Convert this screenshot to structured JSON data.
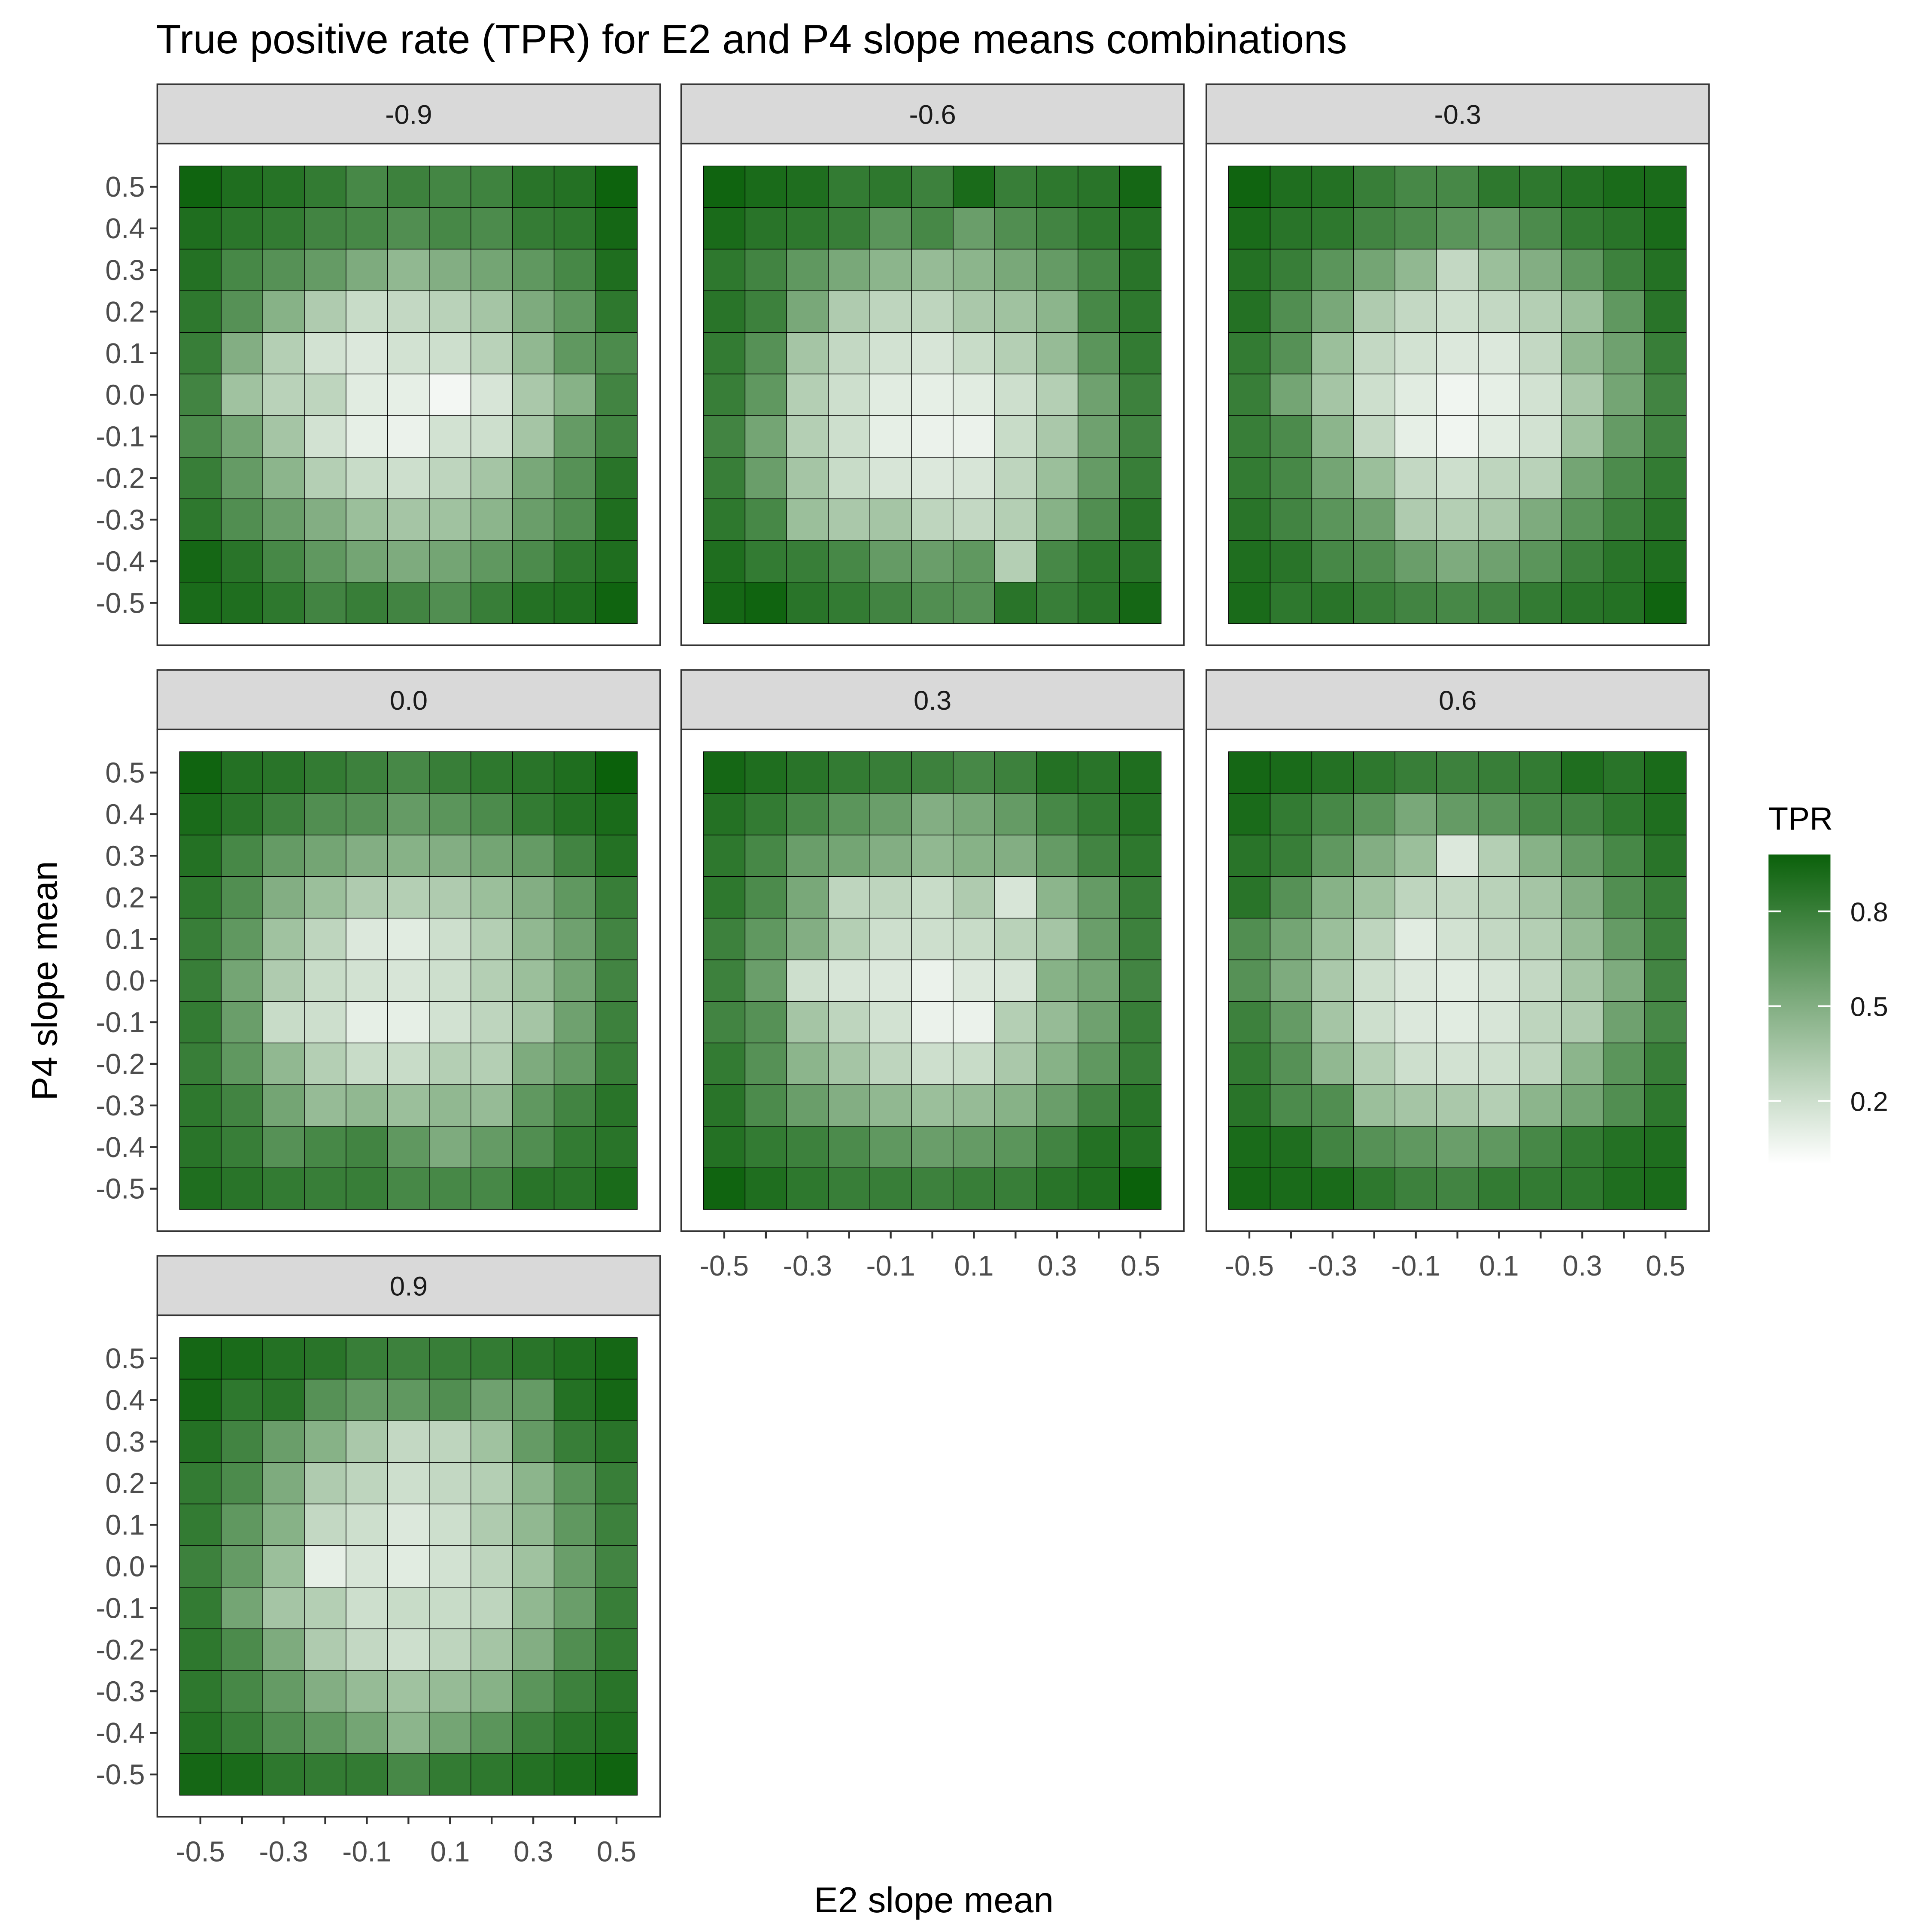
{
  "chart_data": {
    "type": "heatmap",
    "title": "True positive rate (TPR) for E2 and P4 slope means combinations",
    "xlabel": "E2 slope mean",
    "ylabel": "P4 slope mean",
    "x": [
      -0.5,
      -0.4,
      -0.3,
      -0.2,
      -0.1,
      0.0,
      0.1,
      0.2,
      0.3,
      0.4,
      0.5
    ],
    "y": [
      -0.5,
      -0.4,
      -0.3,
      -0.2,
      -0.1,
      0.0,
      0.1,
      0.2,
      0.3,
      0.4,
      0.5
    ],
    "x_tick_labels": [
      "-0.5",
      "-0.3",
      "-0.1",
      "0.1",
      "0.3",
      "0.5"
    ],
    "y_tick_labels": [
      "-0.5",
      "-0.4",
      "-0.3",
      "-0.2",
      "-0.1",
      "0.0",
      "0.1",
      "0.2",
      "0.3",
      "0.4",
      "0.5"
    ],
    "legend": {
      "title": "TPR",
      "ticks": [
        0.2,
        0.5,
        0.8
      ],
      "tick_labels": [
        "0.2",
        "0.5",
        "0.8"
      ],
      "range": [
        0.0,
        0.98
      ],
      "color_low": "#ffffff",
      "color_high": "#0b610b",
      "placement": "right"
    },
    "facets": [
      {
        "label": "-0.9",
        "z": [
          [
            0.96,
            0.9,
            0.87,
            0.82,
            0.74,
            0.78,
            0.75,
            0.77,
            0.86,
            0.88,
            0.97
          ],
          [
            0.9,
            0.85,
            0.82,
            0.76,
            0.74,
            0.7,
            0.74,
            0.72,
            0.81,
            0.84,
            0.94
          ],
          [
            0.88,
            0.74,
            0.68,
            0.62,
            0.52,
            0.44,
            0.5,
            0.56,
            0.64,
            0.74,
            0.9
          ],
          [
            0.84,
            0.68,
            0.48,
            0.32,
            0.22,
            0.24,
            0.28,
            0.36,
            0.52,
            0.64,
            0.84
          ],
          [
            0.8,
            0.5,
            0.3,
            0.18,
            0.14,
            0.18,
            0.2,
            0.28,
            0.44,
            0.64,
            0.72
          ],
          [
            0.76,
            0.38,
            0.28,
            0.26,
            0.12,
            0.1,
            0.05,
            0.16,
            0.34,
            0.48,
            0.76
          ],
          [
            0.72,
            0.56,
            0.36,
            0.18,
            0.1,
            0.08,
            0.18,
            0.2,
            0.36,
            0.62,
            0.76
          ],
          [
            0.8,
            0.62,
            0.46,
            0.3,
            0.22,
            0.2,
            0.26,
            0.36,
            0.54,
            0.68,
            0.86
          ],
          [
            0.84,
            0.7,
            0.6,
            0.5,
            0.4,
            0.36,
            0.38,
            0.46,
            0.6,
            0.7,
            0.9
          ],
          [
            0.94,
            0.86,
            0.74,
            0.64,
            0.56,
            0.52,
            0.56,
            0.64,
            0.72,
            0.84,
            0.9
          ],
          [
            0.92,
            0.9,
            0.84,
            0.76,
            0.8,
            0.76,
            0.7,
            0.8,
            0.88,
            0.9,
            0.96
          ]
        ]
      },
      {
        "label": "-0.6",
        "z": [
          [
            0.96,
            0.92,
            0.9,
            0.82,
            0.84,
            0.78,
            0.92,
            0.8,
            0.84,
            0.86,
            0.94
          ],
          [
            0.92,
            0.86,
            0.84,
            0.8,
            0.66,
            0.74,
            0.6,
            0.7,
            0.76,
            0.84,
            0.88
          ],
          [
            0.84,
            0.76,
            0.64,
            0.54,
            0.46,
            0.42,
            0.46,
            0.54,
            0.62,
            0.74,
            0.86
          ],
          [
            0.86,
            0.78,
            0.54,
            0.32,
            0.26,
            0.26,
            0.34,
            0.38,
            0.46,
            0.74,
            0.84
          ],
          [
            0.82,
            0.68,
            0.36,
            0.24,
            0.18,
            0.16,
            0.22,
            0.3,
            0.42,
            0.66,
            0.82
          ],
          [
            0.8,
            0.64,
            0.3,
            0.2,
            0.12,
            0.1,
            0.12,
            0.2,
            0.3,
            0.58,
            0.78
          ],
          [
            0.76,
            0.56,
            0.3,
            0.2,
            0.1,
            0.08,
            0.08,
            0.22,
            0.34,
            0.58,
            0.76
          ],
          [
            0.8,
            0.6,
            0.36,
            0.22,
            0.16,
            0.14,
            0.16,
            0.26,
            0.4,
            0.62,
            0.8
          ],
          [
            0.84,
            0.74,
            0.4,
            0.34,
            0.36,
            0.26,
            0.24,
            0.3,
            0.48,
            0.7,
            0.86
          ],
          [
            0.9,
            0.82,
            0.8,
            0.74,
            0.62,
            0.6,
            0.64,
            0.3,
            0.74,
            0.84,
            0.86
          ],
          [
            0.94,
            0.96,
            0.86,
            0.82,
            0.76,
            0.7,
            0.68,
            0.86,
            0.8,
            0.86,
            0.94
          ]
        ]
      },
      {
        "label": "-0.3",
        "z": [
          [
            0.96,
            0.9,
            0.88,
            0.8,
            0.74,
            0.74,
            0.84,
            0.84,
            0.88,
            0.92,
            0.92
          ],
          [
            0.92,
            0.86,
            0.84,
            0.76,
            0.72,
            0.66,
            0.62,
            0.72,
            0.82,
            0.86,
            0.92
          ],
          [
            0.88,
            0.8,
            0.66,
            0.56,
            0.44,
            0.24,
            0.4,
            0.5,
            0.64,
            0.78,
            0.88
          ],
          [
            0.88,
            0.7,
            0.54,
            0.32,
            0.24,
            0.2,
            0.24,
            0.3,
            0.4,
            0.64,
            0.86
          ],
          [
            0.82,
            0.68,
            0.4,
            0.24,
            0.18,
            0.14,
            0.14,
            0.24,
            0.44,
            0.58,
            0.8
          ],
          [
            0.8,
            0.56,
            0.36,
            0.2,
            0.12,
            0.06,
            0.1,
            0.18,
            0.34,
            0.56,
            0.76
          ],
          [
            0.8,
            0.72,
            0.46,
            0.24,
            0.1,
            0.06,
            0.12,
            0.18,
            0.38,
            0.62,
            0.76
          ],
          [
            0.82,
            0.74,
            0.56,
            0.4,
            0.24,
            0.2,
            0.26,
            0.28,
            0.56,
            0.72,
            0.82
          ],
          [
            0.86,
            0.76,
            0.66,
            0.58,
            0.32,
            0.3,
            0.34,
            0.52,
            0.66,
            0.78,
            0.86
          ],
          [
            0.9,
            0.86,
            0.74,
            0.7,
            0.6,
            0.52,
            0.58,
            0.66,
            0.78,
            0.86,
            0.9
          ],
          [
            0.92,
            0.84,
            0.86,
            0.8,
            0.76,
            0.74,
            0.76,
            0.82,
            0.86,
            0.88,
            0.96
          ]
        ]
      },
      {
        "label": "0.0",
        "z": [
          [
            0.96,
            0.88,
            0.86,
            0.82,
            0.78,
            0.74,
            0.8,
            0.84,
            0.86,
            0.9,
            0.98
          ],
          [
            0.92,
            0.86,
            0.78,
            0.7,
            0.68,
            0.62,
            0.66,
            0.72,
            0.82,
            0.88,
            0.92
          ],
          [
            0.88,
            0.74,
            0.62,
            0.56,
            0.5,
            0.48,
            0.5,
            0.56,
            0.62,
            0.76,
            0.88
          ],
          [
            0.84,
            0.7,
            0.5,
            0.4,
            0.32,
            0.3,
            0.32,
            0.4,
            0.5,
            0.64,
            0.8
          ],
          [
            0.8,
            0.64,
            0.38,
            0.26,
            0.14,
            0.12,
            0.2,
            0.3,
            0.44,
            0.58,
            0.76
          ],
          [
            0.8,
            0.56,
            0.32,
            0.22,
            0.18,
            0.16,
            0.2,
            0.3,
            0.4,
            0.56,
            0.76
          ],
          [
            0.82,
            0.6,
            0.22,
            0.2,
            0.1,
            0.1,
            0.18,
            0.26,
            0.36,
            0.58,
            0.78
          ],
          [
            0.8,
            0.64,
            0.44,
            0.3,
            0.22,
            0.22,
            0.3,
            0.3,
            0.52,
            0.62,
            0.8
          ],
          [
            0.84,
            0.76,
            0.56,
            0.42,
            0.44,
            0.4,
            0.44,
            0.42,
            0.64,
            0.76,
            0.86
          ],
          [
            0.86,
            0.8,
            0.68,
            0.74,
            0.76,
            0.64,
            0.52,
            0.62,
            0.7,
            0.82,
            0.86
          ],
          [
            0.9,
            0.86,
            0.82,
            0.8,
            0.8,
            0.74,
            0.74,
            0.74,
            0.86,
            0.86,
            0.92
          ]
        ]
      },
      {
        "label": "0.3",
        "z": [
          [
            0.94,
            0.9,
            0.86,
            0.82,
            0.8,
            0.78,
            0.74,
            0.78,
            0.88,
            0.86,
            0.9
          ],
          [
            0.88,
            0.82,
            0.74,
            0.66,
            0.6,
            0.5,
            0.54,
            0.62,
            0.74,
            0.82,
            0.88
          ],
          [
            0.84,
            0.74,
            0.6,
            0.56,
            0.5,
            0.44,
            0.48,
            0.5,
            0.62,
            0.76,
            0.84
          ],
          [
            0.84,
            0.72,
            0.54,
            0.26,
            0.26,
            0.22,
            0.32,
            0.16,
            0.46,
            0.62,
            0.8
          ],
          [
            0.78,
            0.64,
            0.5,
            0.3,
            0.2,
            0.2,
            0.22,
            0.28,
            0.36,
            0.6,
            0.78
          ],
          [
            0.78,
            0.6,
            0.2,
            0.16,
            0.14,
            0.08,
            0.14,
            0.16,
            0.48,
            0.56,
            0.76
          ],
          [
            0.76,
            0.68,
            0.36,
            0.26,
            0.18,
            0.08,
            0.08,
            0.3,
            0.42,
            0.58,
            0.8
          ],
          [
            0.82,
            0.68,
            0.46,
            0.36,
            0.26,
            0.2,
            0.22,
            0.34,
            0.48,
            0.64,
            0.8
          ],
          [
            0.86,
            0.72,
            0.6,
            0.5,
            0.44,
            0.4,
            0.42,
            0.48,
            0.6,
            0.76,
            0.86
          ],
          [
            0.88,
            0.82,
            0.78,
            0.72,
            0.64,
            0.6,
            0.62,
            0.66,
            0.76,
            0.88,
            0.88
          ],
          [
            0.96,
            0.9,
            0.84,
            0.8,
            0.8,
            0.78,
            0.8,
            0.8,
            0.86,
            0.9,
            0.98
          ]
        ]
      },
      {
        "label": "0.6",
        "z": [
          [
            0.94,
            0.92,
            0.88,
            0.84,
            0.8,
            0.78,
            0.8,
            0.82,
            0.9,
            0.86,
            0.92
          ],
          [
            0.92,
            0.82,
            0.74,
            0.66,
            0.54,
            0.62,
            0.66,
            0.74,
            0.76,
            0.84,
            0.9
          ],
          [
            0.86,
            0.8,
            0.64,
            0.5,
            0.4,
            0.14,
            0.3,
            0.48,
            0.62,
            0.74,
            0.86
          ],
          [
            0.86,
            0.68,
            0.48,
            0.38,
            0.26,
            0.24,
            0.28,
            0.36,
            0.5,
            0.7,
            0.8
          ],
          [
            0.7,
            0.56,
            0.4,
            0.26,
            0.12,
            0.18,
            0.24,
            0.3,
            0.42,
            0.62,
            0.78
          ],
          [
            0.68,
            0.52,
            0.34,
            0.2,
            0.14,
            0.12,
            0.16,
            0.24,
            0.36,
            0.52,
            0.76
          ],
          [
            0.78,
            0.62,
            0.36,
            0.2,
            0.14,
            0.12,
            0.16,
            0.26,
            0.32,
            0.58,
            0.74
          ],
          [
            0.82,
            0.68,
            0.44,
            0.3,
            0.2,
            0.18,
            0.2,
            0.26,
            0.46,
            0.66,
            0.8
          ],
          [
            0.86,
            0.72,
            0.7,
            0.4,
            0.36,
            0.34,
            0.3,
            0.46,
            0.56,
            0.7,
            0.84
          ],
          [
            0.92,
            0.9,
            0.76,
            0.68,
            0.64,
            0.6,
            0.64,
            0.74,
            0.82,
            0.88,
            0.9
          ],
          [
            0.94,
            0.92,
            0.92,
            0.84,
            0.78,
            0.76,
            0.82,
            0.82,
            0.84,
            0.9,
            0.92
          ]
        ]
      },
      {
        "label": "0.9",
        "z": [
          [
            0.94,
            0.92,
            0.88,
            0.86,
            0.8,
            0.78,
            0.8,
            0.82,
            0.86,
            0.9,
            0.94
          ],
          [
            0.94,
            0.84,
            0.86,
            0.68,
            0.62,
            0.64,
            0.7,
            0.58,
            0.62,
            0.88,
            0.94
          ],
          [
            0.88,
            0.76,
            0.6,
            0.48,
            0.34,
            0.24,
            0.26,
            0.38,
            0.62,
            0.8,
            0.86
          ],
          [
            0.82,
            0.72,
            0.52,
            0.32,
            0.26,
            0.2,
            0.24,
            0.3,
            0.46,
            0.66,
            0.8
          ],
          [
            0.82,
            0.64,
            0.48,
            0.24,
            0.2,
            0.14,
            0.2,
            0.32,
            0.44,
            0.64,
            0.78
          ],
          [
            0.78,
            0.62,
            0.4,
            0.1,
            0.16,
            0.12,
            0.18,
            0.26,
            0.38,
            0.6,
            0.76
          ],
          [
            0.82,
            0.56,
            0.36,
            0.3,
            0.2,
            0.22,
            0.22,
            0.26,
            0.44,
            0.6,
            0.8
          ],
          [
            0.84,
            0.72,
            0.52,
            0.32,
            0.24,
            0.2,
            0.26,
            0.36,
            0.5,
            0.7,
            0.82
          ],
          [
            0.84,
            0.74,
            0.62,
            0.5,
            0.42,
            0.38,
            0.42,
            0.48,
            0.66,
            0.78,
            0.86
          ],
          [
            0.88,
            0.8,
            0.7,
            0.64,
            0.56,
            0.46,
            0.56,
            0.66,
            0.78,
            0.86,
            0.9
          ],
          [
            0.94,
            0.92,
            0.84,
            0.82,
            0.82,
            0.74,
            0.82,
            0.84,
            0.88,
            0.92,
            0.96
          ]
        ]
      }
    ]
  }
}
